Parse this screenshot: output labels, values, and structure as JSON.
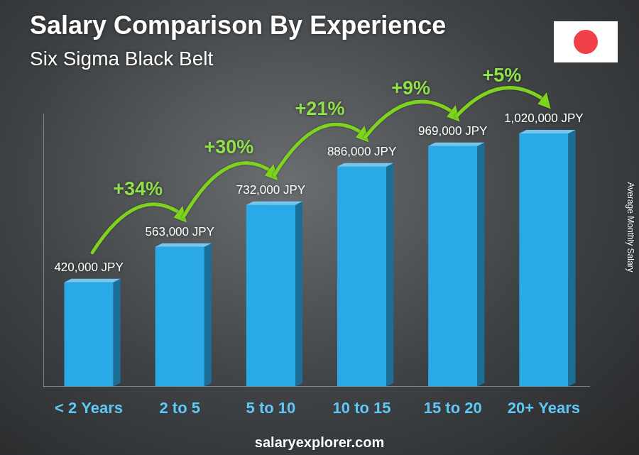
{
  "chart_data": {
    "type": "bar",
    "title": "Salary Comparison By Experience",
    "subtitle": "Six Sigma Black Belt",
    "y_label": "Average Monthly Salary",
    "source": "salaryexplorer.com",
    "categories": [
      "< 2 Years",
      "2 to 5",
      "5 to 10",
      "10 to 15",
      "15 to 20",
      "20+ Years"
    ],
    "values": [
      420000,
      563000,
      732000,
      886000,
      969000,
      1020000
    ],
    "value_labels": [
      "420,000 JPY",
      "563,000 JPY",
      "732,000 JPY",
      "886,000 JPY",
      "969,000 JPY",
      "1,020,000 JPY"
    ],
    "annotations": [
      "+34%",
      "+30%",
      "+21%",
      "+9%",
      "+5%"
    ],
    "color": "#29a9e6",
    "ylim": [
      0,
      1100000
    ],
    "grid": false,
    "data_labels": true,
    "tick_labels": "x"
  }
}
